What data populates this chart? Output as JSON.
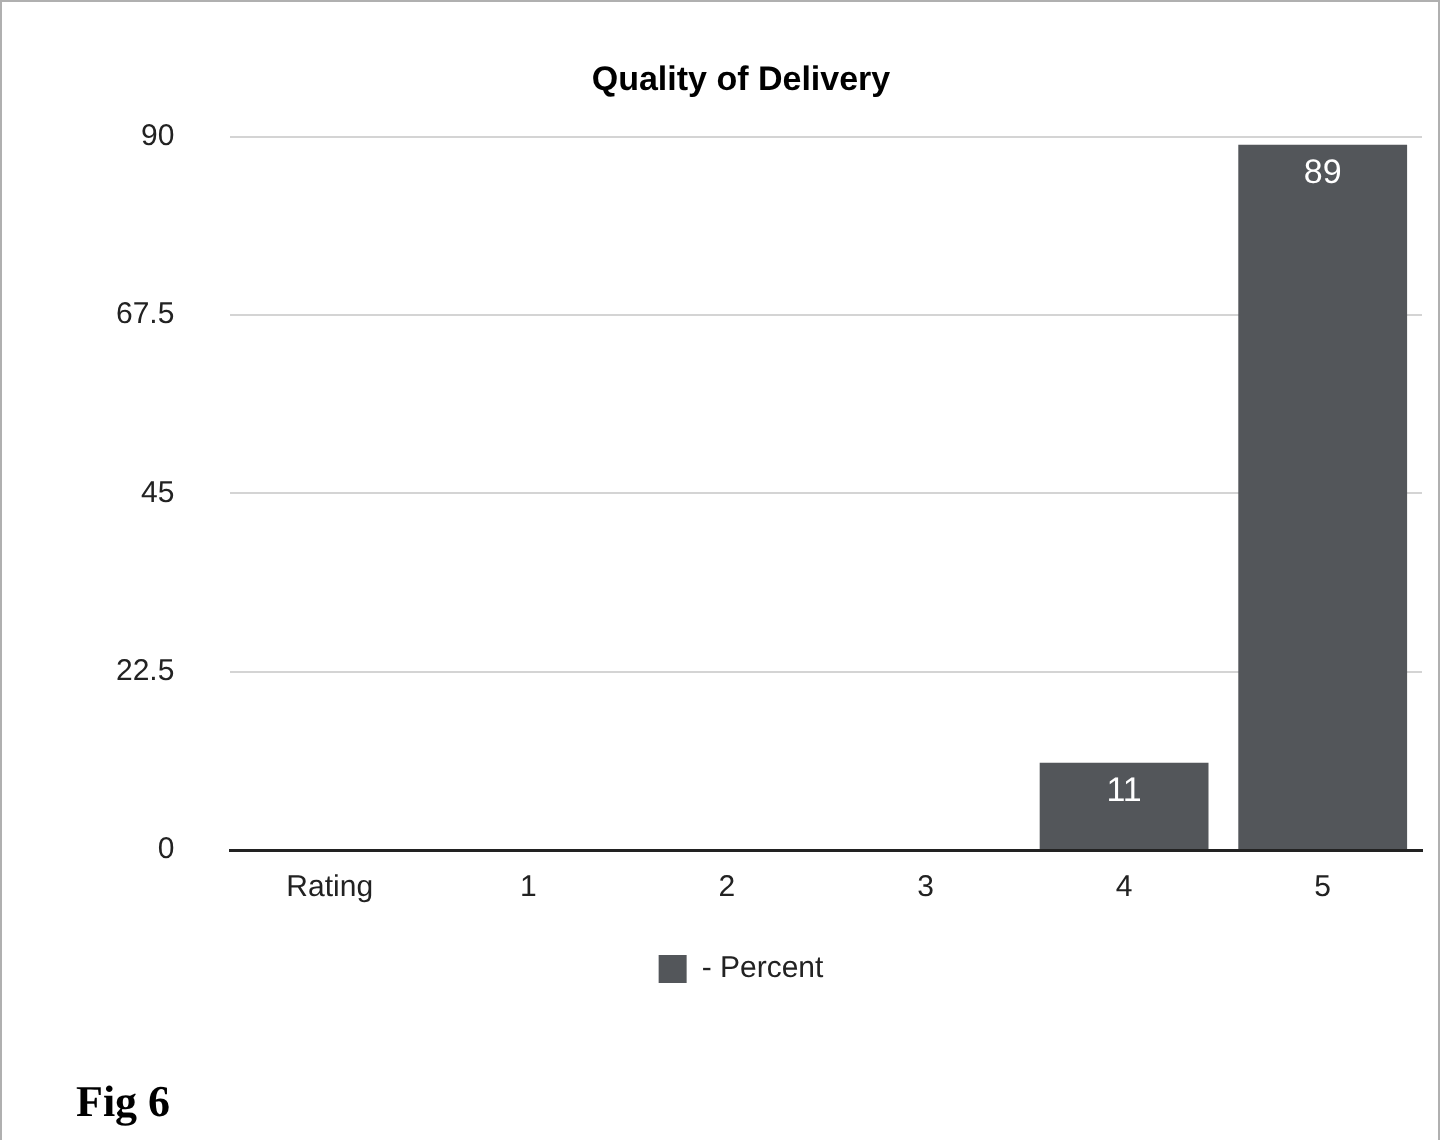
{
  "chart_data": {
    "type": "bar",
    "title": "Quality of Delivery",
    "categories": [
      "Rating",
      "1",
      "2",
      "3",
      "4",
      "5"
    ],
    "series": [
      {
        "name": "- Percent",
        "color": "#53565a",
        "values": [
          null,
          0,
          0,
          0,
          11,
          89
        ],
        "value_labels": [
          null,
          null,
          null,
          null,
          "11",
          "89"
        ]
      }
    ],
    "ylim": [
      0,
      90
    ],
    "yticks": [
      0,
      22.5,
      45,
      67.5,
      90
    ],
    "grid": "y",
    "legend": "bottom",
    "annotations": [
      "Fig 6"
    ]
  }
}
